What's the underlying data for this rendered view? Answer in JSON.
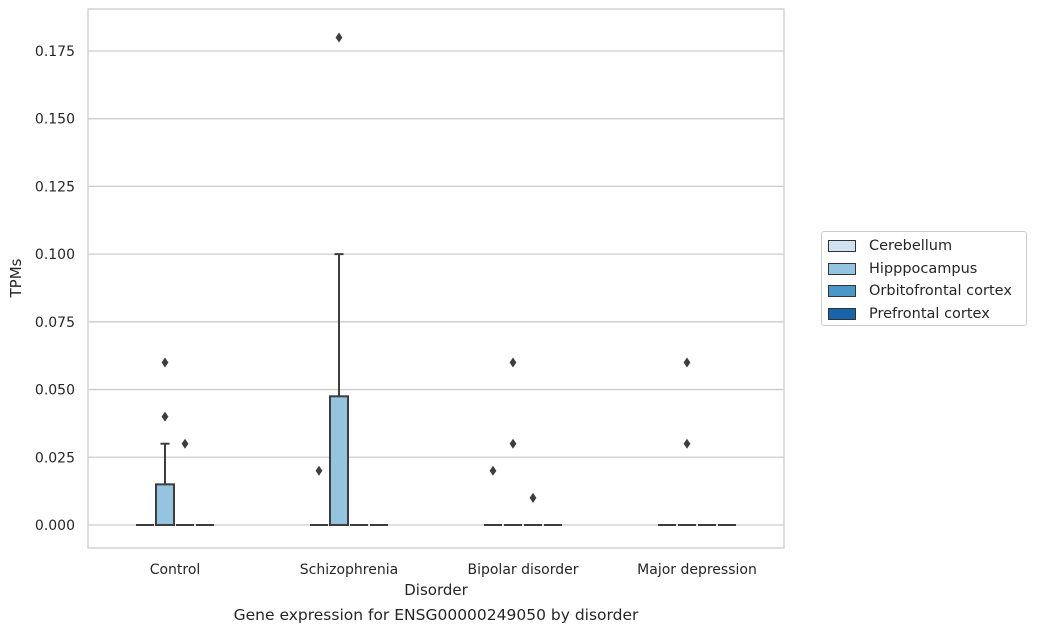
{
  "chart_data": {
    "type": "box",
    "title": "Gene expression for ENSG00000249050 by disorder",
    "xlabel": "Disorder",
    "ylabel": "TPMs",
    "ylim": [
      -0.0085,
      0.1905
    ],
    "yticks": [
      0.0,
      0.025,
      0.05,
      0.075,
      0.1,
      0.125,
      0.15,
      0.175
    ],
    "ytick_labels": [
      "0.000",
      "0.025",
      "0.050",
      "0.075",
      "0.100",
      "0.125",
      "0.150",
      "0.175"
    ],
    "grid": true,
    "legend_position": "right",
    "categories": [
      "Control",
      "Schizophrenia",
      "Bipolar disorder",
      "Major depression"
    ],
    "series": [
      {
        "name": "Cerebellum",
        "color": "#d0e1f2",
        "boxes": [
          {
            "q1": 0,
            "median": 0,
            "q3": 0,
            "whisker_low": 0,
            "whisker_high": 0,
            "outliers": []
          },
          {
            "q1": 0,
            "median": 0,
            "q3": 0,
            "whisker_low": 0,
            "whisker_high": 0,
            "outliers": [
              0.02
            ]
          },
          {
            "q1": 0,
            "median": 0,
            "q3": 0,
            "whisker_low": 0,
            "whisker_high": 0,
            "outliers": [
              0.02
            ]
          },
          {
            "q1": 0,
            "median": 0,
            "q3": 0,
            "whisker_low": 0,
            "whisker_high": 0,
            "outliers": []
          }
        ]
      },
      {
        "name": "Hipppocampus",
        "color": "#94c4df",
        "boxes": [
          {
            "q1": 0,
            "median": 0,
            "q3": 0.015,
            "whisker_low": 0,
            "whisker_high": 0.03,
            "outliers": [
              0.04,
              0.06
            ]
          },
          {
            "q1": 0,
            "median": 0,
            "q3": 0.0475,
            "whisker_low": 0,
            "whisker_high": 0.1,
            "outliers": [
              0.18
            ]
          },
          {
            "q1": 0,
            "median": 0,
            "q3": 0,
            "whisker_low": 0,
            "whisker_high": 0,
            "outliers": [
              0.03,
              0.06
            ]
          },
          {
            "q1": 0,
            "median": 0,
            "q3": 0,
            "whisker_low": 0,
            "whisker_high": 0,
            "outliers": [
              0.03,
              0.06
            ]
          }
        ]
      },
      {
        "name": "Orbitofrontal cortex",
        "color": "#4a98c9",
        "boxes": [
          {
            "q1": 0,
            "median": 0,
            "q3": 0,
            "whisker_low": 0,
            "whisker_high": 0,
            "outliers": [
              0.03
            ]
          },
          {
            "q1": 0,
            "median": 0,
            "q3": 0,
            "whisker_low": 0,
            "whisker_high": 0,
            "outliers": []
          },
          {
            "q1": 0,
            "median": 0,
            "q3": 0,
            "whisker_low": 0,
            "whisker_high": 0,
            "outliers": [
              0.01
            ]
          },
          {
            "q1": 0,
            "median": 0,
            "q3": 0,
            "whisker_low": 0,
            "whisker_high": 0,
            "outliers": []
          }
        ]
      },
      {
        "name": "Prefrontal cortex",
        "color": "#1764ab",
        "boxes": [
          {
            "q1": 0,
            "median": 0,
            "q3": 0,
            "whisker_low": 0,
            "whisker_high": 0,
            "outliers": []
          },
          {
            "q1": 0,
            "median": 0,
            "q3": 0,
            "whisker_low": 0,
            "whisker_high": 0,
            "outliers": []
          },
          {
            "q1": 0,
            "median": 0,
            "q3": 0,
            "whisker_low": 0,
            "whisker_high": 0,
            "outliers": []
          },
          {
            "q1": 0,
            "median": 0,
            "q3": 0,
            "whisker_low": 0,
            "whisker_high": 0,
            "outliers": []
          }
        ]
      }
    ]
  }
}
